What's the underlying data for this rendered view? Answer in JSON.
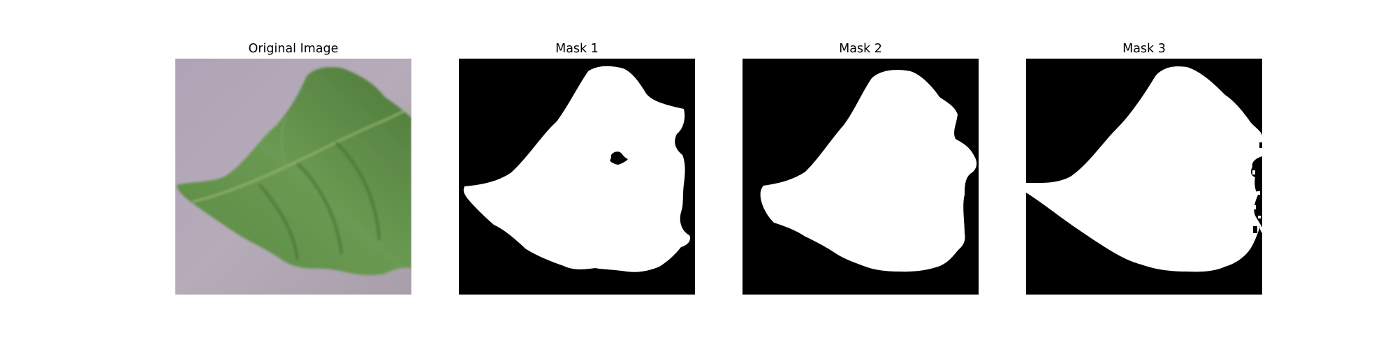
{
  "figure": {
    "panels": [
      {
        "title": "Original Image"
      },
      {
        "title": "Mask 1"
      },
      {
        "title": "Mask 2"
      },
      {
        "title": "Mask 3"
      }
    ]
  },
  "colors": {
    "background_surface": "#b2a6b4",
    "leaf_green": "#5c8c45",
    "leaf_dark": "#4a7336",
    "leaf_highlight": "#86ac67",
    "mask_background": "#000000",
    "mask_foreground": "#ffffff"
  }
}
